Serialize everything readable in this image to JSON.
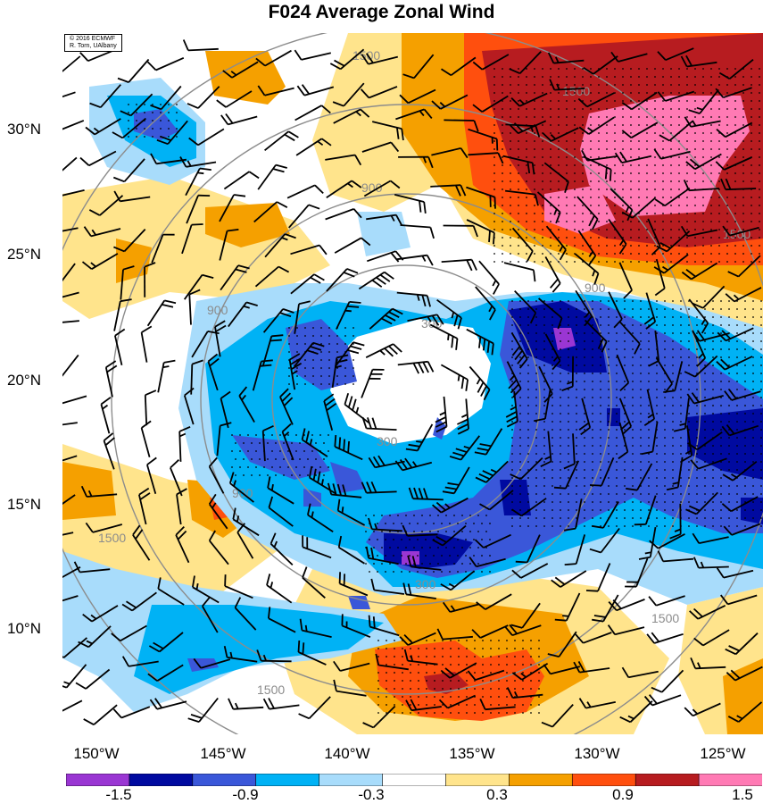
{
  "title": "F024 Average Zonal Wind",
  "credit": {
    "line1": "© 2016 ECMWF",
    "line2": "R. Torn, UAlbany"
  },
  "lat_labels": [
    "30°N",
    "25°N",
    "20°N",
    "15°N",
    "10°N"
  ],
  "lon_labels": [
    "150°W",
    "145°W",
    "140°W",
    "135°W",
    "130°W",
    "125°W"
  ],
  "contour_labels": [
    "300",
    "900",
    "1500"
  ],
  "colorbar": {
    "labels": [
      "-1.5",
      "-0.9",
      "-0.3",
      "0.3",
      "0.9",
      "1.5"
    ],
    "colors": [
      "#9a36d3",
      "#000aa0",
      "#3a57d9",
      "#00b2f5",
      "#a8dcfb",
      "#ffffff",
      "#ffe48c",
      "#f5a000",
      "#ff4f0e",
      "#b71c20",
      "#ff7ab4"
    ]
  },
  "palette": {
    "purple": "#9a36d3",
    "navy": "#000aa0",
    "blue": "#3a57d9",
    "cyan": "#00b2f5",
    "lightblue": "#a8dcfb",
    "white": "#ffffff",
    "yellow": "#ffe48c",
    "orange": "#f5a000",
    "redorange": "#ff4f0e",
    "darkred": "#b71c20",
    "pink": "#ff7ab4",
    "range_ring": "#8c8c8c",
    "barb": "#000000"
  }
}
